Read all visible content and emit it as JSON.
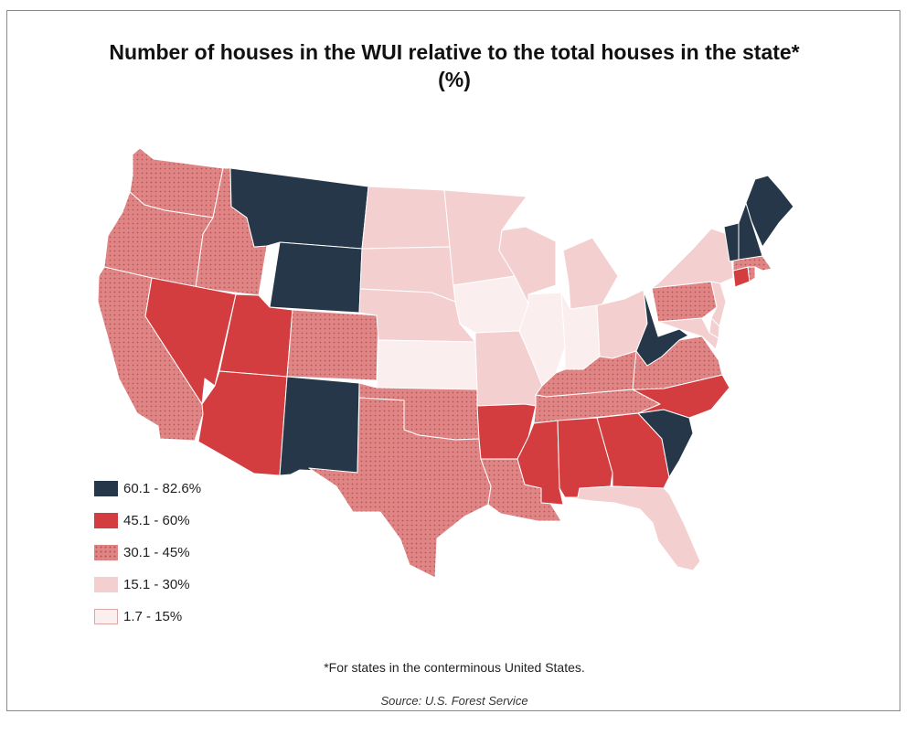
{
  "title_line1": "Number of houses in the WUI relative to the total houses in the state*",
  "title_line2": "(%)",
  "footnote": "*For states in the conterminous United States.",
  "source": "Source: U.S. Forest Service",
  "legend": [
    {
      "label": "60.1 - 82.6%",
      "color": "#253748",
      "pattern": "none"
    },
    {
      "label": "45.1 - 60%",
      "color": "#d43d3f",
      "pattern": "none"
    },
    {
      "label": "30.1 - 45%",
      "color": "#e08585",
      "pattern": "dots"
    },
    {
      "label": "15.1 - 30%",
      "color": "#f4cfcf",
      "pattern": "none"
    },
    {
      "label": "1.7 - 15%",
      "color": "#fbeeee",
      "pattern": "none"
    }
  ],
  "states": {
    "WA": "30.1 - 45%",
    "OR": "30.1 - 45%",
    "CA": "30.1 - 45%",
    "ID": "30.1 - 45%",
    "NV": "45.1 - 60%",
    "MT": "60.1 - 82.6%",
    "WY": "60.1 - 82.6%",
    "UT": "45.1 - 60%",
    "AZ": "45.1 - 60%",
    "CO": "30.1 - 45%",
    "NM": "60.1 - 82.6%",
    "ND": "15.1 - 30%",
    "SD": "15.1 - 30%",
    "NE": "15.1 - 30%",
    "KS": "1.7 - 15%",
    "OK": "30.1 - 45%",
    "TX": "30.1 - 45%",
    "MN": "15.1 - 30%",
    "IA": "1.7 - 15%",
    "MO": "15.1 - 30%",
    "AR": "45.1 - 60%",
    "LA": "30.1 - 45%",
    "WI": "15.1 - 30%",
    "IL": "1.7 - 15%",
    "MI": "15.1 - 30%",
    "IN": "1.7 - 15%",
    "OH": "15.1 - 30%",
    "KY": "30.1 - 45%",
    "TN": "30.1 - 45%",
    "MS": "45.1 - 60%",
    "AL": "45.1 - 60%",
    "GA": "45.1 - 60%",
    "FL": "15.1 - 30%",
    "SC": "60.1 - 82.6%",
    "NC": "45.1 - 60%",
    "VA": "30.1 - 45%",
    "WV": "60.1 - 82.6%",
    "PA": "30.1 - 45%",
    "NY": "15.1 - 30%",
    "NJ": "15.1 - 30%",
    "DE": "15.1 - 30%",
    "MD": "15.1 - 30%",
    "CT": "45.1 - 60%",
    "RI": "30.1 - 45%",
    "MA": "30.1 - 45%",
    "VT": "60.1 - 82.6%",
    "NH": "60.1 - 82.6%",
    "ME": "60.1 - 82.6%"
  }
}
